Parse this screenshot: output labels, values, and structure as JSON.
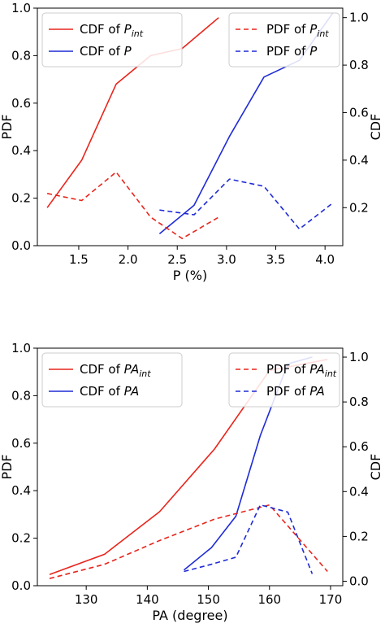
{
  "chart_data": [
    {
      "type": "line",
      "xlabel": "P (%)",
      "ylabel_left": "PDF",
      "ylabel_right": "CDF",
      "xlim": [
        1.08,
        4.18
      ],
      "ylim_left": [
        0,
        1.0
      ],
      "ylim_right": [
        0.04,
        1.04
      ],
      "xticks": [
        1.5,
        2.0,
        2.5,
        3.0,
        3.5,
        4.0
      ],
      "xtick_labels": [
        "1.5",
        "2.0",
        "2.5",
        "3.0",
        "3.5",
        "4.0"
      ],
      "yticks_left": [
        0.0,
        0.2,
        0.4,
        0.6,
        0.8,
        1.0
      ],
      "ytick_labels_left": [
        "0.0",
        "0.2",
        "0.4",
        "0.6",
        "0.8",
        "1.0"
      ],
      "yticks_right": [
        0.2,
        0.4,
        0.6,
        0.8,
        1.0
      ],
      "ytick_labels_right": [
        "0.2",
        "0.4",
        "0.6",
        "0.8",
        "1.0"
      ],
      "legend_left": {
        "position": "top-left",
        "entries": [
          0,
          1
        ]
      },
      "legend_right": {
        "position": "top-right",
        "entries": [
          2,
          3
        ]
      },
      "series": [
        {
          "name": "CDF of P",
          "sub": "int",
          "axis": "right",
          "color": "#e8251c",
          "dash": "solid",
          "x": [
            1.18,
            1.53,
            1.88,
            2.23,
            2.55,
            2.92
          ],
          "y": [
            0.2,
            0.4,
            0.72,
            0.84,
            0.87,
            1.0
          ]
        },
        {
          "name": "CDF of P",
          "sub": "",
          "axis": "right",
          "color": "#1f2bd6",
          "dash": "solid",
          "x": [
            2.32,
            2.67,
            3.03,
            3.38,
            3.74,
            4.08
          ],
          "y": [
            0.09,
            0.21,
            0.5,
            0.75,
            0.82,
            1.02
          ]
        },
        {
          "name": "PDF of P",
          "sub": "int",
          "axis": "left",
          "color": "#e8251c",
          "dash": "dashed",
          "x": [
            1.18,
            1.53,
            1.88,
            2.23,
            2.55,
            2.92
          ],
          "y": [
            0.22,
            0.19,
            0.31,
            0.12,
            0.03,
            0.12
          ]
        },
        {
          "name": "PDF of P",
          "sub": "",
          "axis": "left",
          "color": "#1f2bd6",
          "dash": "dashed",
          "x": [
            2.32,
            2.67,
            3.03,
            3.38,
            3.74,
            4.08
          ],
          "y": [
            0.15,
            0.13,
            0.28,
            0.25,
            0.07,
            0.18
          ]
        }
      ]
    },
    {
      "type": "line",
      "xlabel": "PA (degree)",
      "ylabel_left": "PDF",
      "ylabel_right": "CDF",
      "xlim": [
        122,
        172
      ],
      "ylim_left": [
        0,
        1.0
      ],
      "ylim_right": [
        -0.02,
        1.04
      ],
      "xticks": [
        130,
        140,
        150,
        160,
        170
      ],
      "xtick_labels": [
        "130",
        "140",
        "150",
        "160",
        "170"
      ],
      "yticks_left": [
        0.0,
        0.2,
        0.4,
        0.6,
        0.8,
        1.0
      ],
      "ytick_labels_left": [
        "0.0",
        "0.2",
        "0.4",
        "0.6",
        "0.8",
        "1.0"
      ],
      "yticks_right": [
        0.0,
        0.2,
        0.4,
        0.6,
        0.8,
        1.0
      ],
      "ytick_labels_right": [
        "0.0",
        "0.2",
        "0.4",
        "0.6",
        "0.8",
        "1.0"
      ],
      "legend_left": {
        "position": "top-left",
        "entries": [
          0,
          1
        ]
      },
      "legend_right": {
        "position": "top-right",
        "entries": [
          2,
          3
        ]
      },
      "series": [
        {
          "name": "CDF of PA",
          "sub": "int",
          "axis": "right",
          "color": "#e8251c",
          "dash": "solid",
          "x": [
            124,
            133,
            142,
            151,
            160,
            169.5
          ],
          "y": [
            0.03,
            0.12,
            0.31,
            0.59,
            0.94,
            0.99
          ]
        },
        {
          "name": "CDF of PA",
          "sub": "",
          "axis": "right",
          "color": "#1f2bd6",
          "dash": "solid",
          "x": [
            146,
            150.5,
            154.5,
            158.5,
            163,
            167
          ],
          "y": [
            0.05,
            0.15,
            0.29,
            0.65,
            0.97,
            1.0
          ]
        },
        {
          "name": "PDF of PA",
          "sub": "int",
          "axis": "left",
          "color": "#e8251c",
          "dash": "dashed",
          "x": [
            124,
            133,
            142,
            151,
            160,
            169.5
          ],
          "y": [
            0.03,
            0.09,
            0.19,
            0.28,
            0.34,
            0.06
          ]
        },
        {
          "name": "PDF of PA",
          "sub": "",
          "axis": "left",
          "color": "#1f2bd6",
          "dash": "dashed",
          "x": [
            146,
            150.5,
            154.5,
            158.5,
            163,
            167
          ],
          "y": [
            0.06,
            0.09,
            0.12,
            0.34,
            0.31,
            0.05
          ]
        }
      ]
    }
  ]
}
